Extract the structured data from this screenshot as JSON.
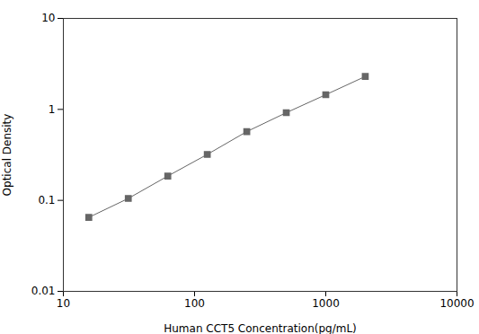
{
  "chart_data": {
    "type": "line",
    "x": [
      15.625,
      31.25,
      62.5,
      125,
      250,
      500,
      1000,
      2000
    ],
    "values": [
      0.065,
      0.105,
      0.185,
      0.32,
      0.57,
      0.92,
      1.45,
      2.3
    ],
    "xlabel": "Human CCT5 Concentration(pg/mL)",
    "ylabel": "Optical Density",
    "xlim": [
      10,
      10000
    ],
    "ylim": [
      0.01,
      10
    ],
    "xticks": [
      10,
      100,
      1000,
      10000
    ],
    "yticks": [
      0.01,
      0.1,
      1,
      10
    ],
    "log": true,
    "grid": false,
    "color": "#666666",
    "marker": "square"
  }
}
